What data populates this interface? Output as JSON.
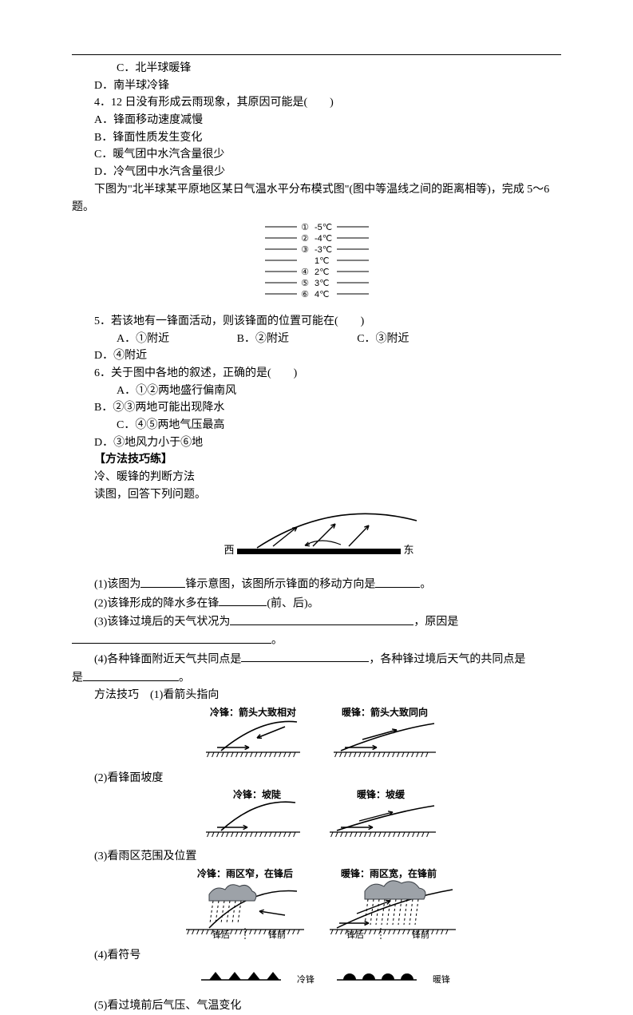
{
  "q3": {
    "optC": "C．北半球暖锋",
    "optD": "D．南半球冷锋"
  },
  "q4": {
    "stem": "4．12 日没有形成云雨现象，其原因可能是(　　)",
    "A": "A．锋面移动速度减慢",
    "B": "B．锋面性质发生变化",
    "C": "C．暖气团中水汽含量很少",
    "D": "D．冷气团中水汽含量很少"
  },
  "intro56": "下图为\"北半球某平原地区某日气温水平分布模式图\"(图中等温线之间的距离相等)，完成 5～6 题。",
  "isotherms": {
    "lines": [
      {
        "n": "①",
        "t": "-5℃"
      },
      {
        "n": "②",
        "t": "-4℃"
      },
      {
        "n": "③",
        "t": "-3℃"
      },
      {
        "n": "",
        "t": "1℃"
      },
      {
        "n": "④",
        "t": "2℃"
      },
      {
        "n": "⑤",
        "t": "3℃"
      },
      {
        "n": "⑥",
        "t": "4℃"
      }
    ],
    "font_size": 11,
    "line_color": "#000000"
  },
  "q5": {
    "stem": "5．若该地有一锋面活动，则该锋面的位置可能在(　　)",
    "A": "A．①附近",
    "B": "B．②附近",
    "C": "C．③附近",
    "D": "D．④附近"
  },
  "q6": {
    "stem": "6．关于图中各地的叙述，正确的是(　　)",
    "A": "A．①②两地盛行偏南风",
    "B": "B．②③两地可能出现降水",
    "C": "C．④⑤两地气压最高",
    "D": "D．③地风力小于⑥地"
  },
  "method": {
    "title": "【方法技巧练】",
    "sub": "冷、暖锋的判断方法",
    "read": "读图，回答下列问题。"
  },
  "front_fig": {
    "west": "西",
    "east": "东",
    "ground_color": "#000000",
    "line_color": "#000000"
  },
  "blanks": {
    "p1a": "(1)该图为",
    "p1b": "锋示意图，该图所示锋面的移动方向是",
    "p1c": "。",
    "p2a": "(2)该锋形成的降水多在锋",
    "p2b": "(前、后)。",
    "p3a": "(3)该锋过境后的天气状况为",
    "p3b": "，原因是",
    "p3c": "。",
    "p4a": "(4)各种锋面附近天气共同点是",
    "p4b": "，各种锋过境后天气的共同点是",
    "p4c": "。"
  },
  "tips": {
    "lead": "方法技巧　(1)看箭头指向",
    "t1cold": "冷锋：箭头大致相对",
    "t1warm": "暖锋：箭头大致同向",
    "t2": "(2)看锋面坡度",
    "t2cold": "冷锋：坡陡",
    "t2warm": "暖锋：坡缓",
    "t3": "(3)看雨区范围及位置",
    "t3cold": "冷锋：雨区窄，在锋后",
    "t3warm": "暖锋：雨区宽，在锋前",
    "t3bh": "锋后",
    "t3fr": "锋前",
    "t4": "(4)看符号",
    "t4cold": "冷锋",
    "t4warm": "暖锋",
    "t5": "(5)看过境前后气压、气温变化"
  },
  "svg": {
    "label_font": 12,
    "small_font": 11,
    "hatch_color": "#000000",
    "cloud_fill": "#9da2a8",
    "cloud_stroke": "#3a3f45"
  }
}
